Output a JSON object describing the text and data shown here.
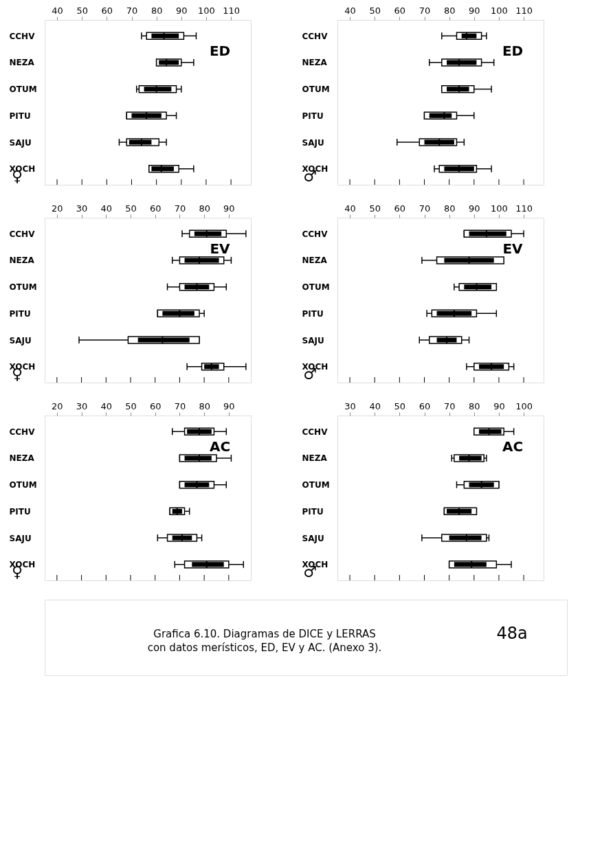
{
  "chart_data": [
    {
      "type": "box",
      "orientation": "horizontal",
      "categories": [
        "CCHV",
        "NEZA",
        "OTUM",
        "PITU",
        "SAJU",
        "XOCH"
      ],
      "xlim": [
        35,
        118
      ],
      "xticks": [
        40,
        50,
        60,
        70,
        80,
        90,
        100,
        110
      ],
      "annotations": [
        "ED",
        "♀"
      ],
      "series": [
        {
          "type": "box",
          "color": "#ffffff",
          "boxes": [
            {
              "low": 74,
              "q1": 76,
              "median": 83,
              "q3": 91,
              "high": 96
            },
            {
              "low": 80,
              "q1": 80,
              "median": 84,
              "q3": 90,
              "high": 95
            },
            {
              "low": 72,
              "q1": 73,
              "median": 80,
              "q3": 88,
              "high": 90
            },
            {
              "low": 68,
              "q1": 68,
              "median": 76,
              "q3": 84,
              "high": 88
            },
            {
              "low": 65,
              "q1": 68,
              "median": 74,
              "q3": 81,
              "high": 84
            },
            {
              "low": 77,
              "q1": 77,
              "median": 82,
              "q3": 89,
              "high": 95
            }
          ]
        },
        {
          "type": "bar",
          "color": "#000000",
          "base": [
            78,
            81,
            75,
            70,
            69,
            78
          ],
          "values": [
            11,
            8,
            11,
            12,
            9,
            9
          ]
        }
      ]
    },
    {
      "type": "box",
      "orientation": "horizontal",
      "categories": [
        "CCHV",
        "NEZA",
        "OTUM",
        "PITU",
        "SAJU",
        "XOCH"
      ],
      "xlim": [
        35,
        118
      ],
      "xticks": [
        40,
        50,
        60,
        70,
        80,
        90,
        100,
        110
      ],
      "annotations": [
        "ED",
        "♂"
      ],
      "series": [
        {
          "type": "box",
          "color": "#ffffff",
          "boxes": [
            {
              "low": 77,
              "q1": 83,
              "median": 87,
              "q3": 93,
              "high": 95
            },
            {
              "low": 72,
              "q1": 77,
              "median": 84,
              "q3": 93,
              "high": 98
            },
            {
              "low": 77,
              "q1": 77,
              "median": 84,
              "q3": 90,
              "high": 97
            },
            {
              "low": 70,
              "q1": 70,
              "median": 78,
              "q3": 83,
              "high": 90
            },
            {
              "low": 59,
              "q1": 68,
              "median": 76,
              "q3": 83,
              "high": 86
            },
            {
              "low": 74,
              "q1": 76,
              "median": 84,
              "q3": 91,
              "high": 97
            }
          ]
        },
        {
          "type": "bar",
          "color": "#000000",
          "base": [
            85,
            79,
            79,
            72,
            70,
            78
          ],
          "values": [
            6,
            12,
            9,
            9,
            12,
            12
          ]
        }
      ]
    },
    {
      "type": "box",
      "orientation": "horizontal",
      "categories": [
        "CCHV",
        "NEZA",
        "OTUM",
        "PITU",
        "SAJU",
        "XOCH"
      ],
      "xlim": [
        15,
        99
      ],
      "xticks": [
        20,
        30,
        40,
        50,
        60,
        70,
        80,
        90
      ],
      "annotations": [
        "EV",
        "♀"
      ],
      "series": [
        {
          "type": "box",
          "color": "#ffffff",
          "boxes": [
            {
              "low": 71,
              "q1": 74,
              "median": 81,
              "q3": 89,
              "high": 97
            },
            {
              "low": 67,
              "q1": 70,
              "median": 78,
              "q3": 88,
              "high": 91
            },
            {
              "low": 65,
              "q1": 70,
              "median": 77,
              "q3": 84,
              "high": 89
            },
            {
              "low": 61,
              "q1": 61,
              "median": 70,
              "q3": 78,
              "high": 80
            },
            {
              "low": 29,
              "q1": 49,
              "median": 63,
              "q3": 78,
              "high": 78
            },
            {
              "low": 73,
              "q1": 79,
              "median": 83,
              "q3": 88,
              "high": 97
            }
          ]
        },
        {
          "type": "bar",
          "color": "#000000",
          "base": [
            76,
            72,
            72,
            63,
            53,
            80
          ],
          "values": [
            11,
            14,
            10,
            13,
            21,
            6
          ]
        }
      ]
    },
    {
      "type": "box",
      "orientation": "horizontal",
      "categories": [
        "CCHV",
        "NEZA",
        "OTUM",
        "PITU",
        "SAJU",
        "XOCH"
      ],
      "xlim": [
        35,
        118
      ],
      "xticks": [
        40,
        50,
        60,
        70,
        80,
        90,
        100,
        110
      ],
      "annotations": [
        "EV",
        "♂"
      ],
      "series": [
        {
          "type": "box",
          "color": "#ffffff",
          "boxes": [
            {
              "low": 86,
              "q1": 86,
              "median": 95,
              "q3": 105,
              "high": 110
            },
            {
              "low": 69,
              "q1": 75,
              "median": 88,
              "q3": 102,
              "high": 102
            },
            {
              "low": 82,
              "q1": 84,
              "median": 91,
              "q3": 99,
              "high": 99
            },
            {
              "low": 71,
              "q1": 73,
              "median": 82,
              "q3": 91,
              "high": 99
            },
            {
              "low": 68,
              "q1": 72,
              "median": 79,
              "q3": 85,
              "high": 88
            },
            {
              "low": 87,
              "q1": 90,
              "median": 97,
              "q3": 104,
              "high": 106
            }
          ]
        },
        {
          "type": "bar",
          "color": "#000000",
          "base": [
            88,
            78,
            86,
            75,
            75,
            92
          ],
          "values": [
            15,
            20,
            11,
            14,
            8,
            10
          ]
        }
      ]
    },
    {
      "type": "box",
      "orientation": "horizontal",
      "categories": [
        "CCHV",
        "NEZA",
        "OTUM",
        "PITU",
        "SAJU",
        "XOCH"
      ],
      "xlim": [
        15,
        99
      ],
      "xticks": [
        20,
        30,
        40,
        50,
        60,
        70,
        80,
        90
      ],
      "annotations": [
        "AC",
        "♀"
      ],
      "series": [
        {
          "type": "box",
          "color": "#ffffff",
          "boxes": [
            {
              "low": 67,
              "q1": 72,
              "median": 78,
              "q3": 84,
              "high": 89
            },
            {
              "low": 70,
              "q1": 70,
              "median": 78,
              "q3": 85,
              "high": 91
            },
            {
              "low": 70,
              "q1": 70,
              "median": 77,
              "q3": 84,
              "high": 89
            },
            {
              "low": 66,
              "q1": 66,
              "median": 69,
              "q3": 72,
              "high": 74
            },
            {
              "low": 61,
              "q1": 65,
              "median": 71,
              "q3": 77,
              "high": 79
            },
            {
              "low": 68,
              "q1": 72,
              "median": 81,
              "q3": 90,
              "high": 96
            }
          ]
        },
        {
          "type": "bar",
          "color": "#000000",
          "base": [
            73,
            72,
            72,
            67,
            67,
            75
          ],
          "values": [
            10,
            11,
            10,
            4,
            8,
            13
          ]
        }
      ]
    },
    {
      "type": "box",
      "orientation": "horizontal",
      "categories": [
        "CCHV",
        "NEZA",
        "OTUM",
        "PITU",
        "SAJU",
        "XOCH"
      ],
      "xlim": [
        25,
        108
      ],
      "xticks": [
        30,
        40,
        50,
        60,
        70,
        80,
        90,
        100
      ],
      "annotations": [
        "AC",
        "♂"
      ],
      "series": [
        {
          "type": "box",
          "color": "#ffffff",
          "boxes": [
            {
              "low": 80,
              "q1": 80,
              "median": 86,
              "q3": 92,
              "high": 96
            },
            {
              "low": 71,
              "q1": 72,
              "median": 78,
              "q3": 84,
              "high": 85
            },
            {
              "low": 73,
              "q1": 76,
              "median": 83,
              "q3": 90,
              "high": 90
            },
            {
              "low": 68,
              "q1": 68,
              "median": 74,
              "q3": 81,
              "high": 81
            },
            {
              "low": 59,
              "q1": 67,
              "median": 77,
              "q3": 85,
              "high": 86
            },
            {
              "low": 70,
              "q1": 70,
              "median": 79,
              "q3": 89,
              "high": 95
            }
          ]
        },
        {
          "type": "bar",
          "color": "#000000",
          "base": [
            82,
            74,
            78,
            69,
            70,
            72
          ],
          "values": [
            9,
            9,
            10,
            10,
            13,
            13
          ]
        }
      ]
    },
    {
      "type": "other",
      "annotations": [
        "Grafica 6.10. Diagramas de DICE y LERRAS\ncon datos merísticos, ED, EV y AC. (Anexo 3).",
        "48a"
      ]
    }
  ]
}
